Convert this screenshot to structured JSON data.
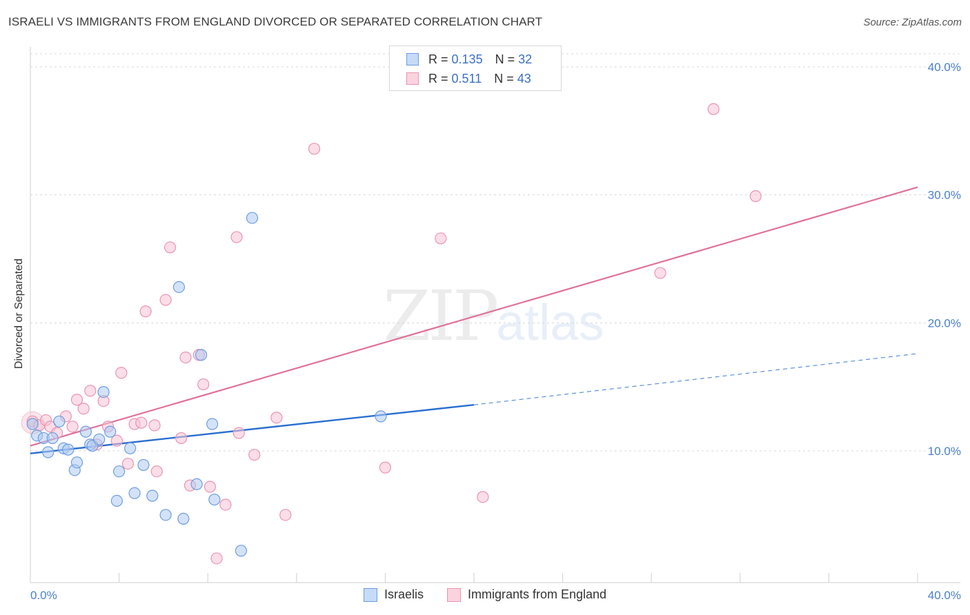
{
  "header": {
    "title": "ISRAELI VS IMMIGRANTS FROM ENGLAND DIVORCED OR SEPARATED CORRELATION CHART",
    "source": "Source: ZipAtlas.com"
  },
  "watermark": {
    "zip": "ZIP",
    "atlas": "atlas"
  },
  "legend": {
    "rows": [
      {
        "r_label": "R =",
        "r_value": "0.135",
        "n_label": "N =",
        "n_value": "32",
        "color": "#aecbf2",
        "border": "#6d9de0"
      },
      {
        "r_label": "R =",
        "r_value": "0.511",
        "n_label": "N =",
        "n_value": "43",
        "color": "#f7c3d3",
        "border": "#e994b0"
      }
    ],
    "bottom": [
      {
        "label": "Israelis",
        "color": "#c5dbf7",
        "border": "#6d9de0"
      },
      {
        "label": "Immigrants from England",
        "color": "#fbd3df",
        "border": "#e994b0"
      }
    ]
  },
  "chart_data": {
    "type": "scatter",
    "title": "ISRAELI VS IMMIGRANTS FROM ENGLAND DIVORCED OR SEPARATED CORRELATION CHART",
    "xlabel": "",
    "ylabel": "Divorced or Separated",
    "xlim": [
      0,
      40
    ],
    "ylim": [
      0,
      40
    ],
    "x_tick_labels": [
      "0.0%",
      "40.0%"
    ],
    "y_ticks": [
      10,
      20,
      30,
      40
    ],
    "y_tick_labels": [
      "10.0%",
      "20.0%",
      "30.0%",
      "40.0%"
    ],
    "grid": true,
    "series": [
      {
        "name": "Israelis",
        "color": "#6d9de0",
        "fill": "#aecbf2",
        "r": 0.135,
        "n": 32,
        "points": [
          [
            0.1,
            12.1
          ],
          [
            0.3,
            11.2
          ],
          [
            0.6,
            11.0
          ],
          [
            0.8,
            9.9
          ],
          [
            1.0,
            11.0
          ],
          [
            1.3,
            12.3
          ],
          [
            1.5,
            10.2
          ],
          [
            1.7,
            10.1
          ],
          [
            2.0,
            8.5
          ],
          [
            2.1,
            9.1
          ],
          [
            2.5,
            11.5
          ],
          [
            2.7,
            10.5
          ],
          [
            2.8,
            10.4
          ],
          [
            3.1,
            10.9
          ],
          [
            3.3,
            14.6
          ],
          [
            3.6,
            11.5
          ],
          [
            3.9,
            6.1
          ],
          [
            4.0,
            8.4
          ],
          [
            4.5,
            10.2
          ],
          [
            4.7,
            6.7
          ],
          [
            5.1,
            8.9
          ],
          [
            5.5,
            6.5
          ],
          [
            6.1,
            5.0
          ],
          [
            6.7,
            22.8
          ],
          [
            6.9,
            4.7
          ],
          [
            7.5,
            7.4
          ],
          [
            7.7,
            17.5
          ],
          [
            8.2,
            12.1
          ],
          [
            8.3,
            6.2
          ],
          [
            9.5,
            2.2
          ],
          [
            10.0,
            28.2
          ],
          [
            15.8,
            12.7
          ]
        ],
        "trend": {
          "x0": 0,
          "y0": 9.8,
          "x1": 20,
          "y1": 13.6,
          "dashed_to_x": 40,
          "dashed_to_y": 17.6
        }
      },
      {
        "name": "Immigrants from England",
        "color": "#e994b0",
        "fill": "#f7c3d3",
        "r": 0.511,
        "n": 43,
        "points": [
          [
            0.1,
            12.3
          ],
          [
            0.4,
            12.0
          ],
          [
            0.7,
            12.4
          ],
          [
            0.9,
            11.9
          ],
          [
            1.2,
            11.4
          ],
          [
            1.6,
            12.7
          ],
          [
            1.9,
            11.9
          ],
          [
            2.1,
            14.0
          ],
          [
            2.4,
            13.3
          ],
          [
            2.7,
            14.7
          ],
          [
            3.0,
            10.5
          ],
          [
            3.3,
            13.9
          ],
          [
            3.5,
            11.9
          ],
          [
            3.9,
            10.8
          ],
          [
            4.1,
            16.1
          ],
          [
            4.4,
            9.0
          ],
          [
            4.7,
            12.1
          ],
          [
            5.0,
            12.2
          ],
          [
            5.2,
            20.9
          ],
          [
            5.6,
            12.0
          ],
          [
            5.7,
            8.4
          ],
          [
            6.1,
            21.8
          ],
          [
            6.3,
            25.9
          ],
          [
            6.8,
            11.0
          ],
          [
            7.0,
            17.3
          ],
          [
            7.2,
            7.3
          ],
          [
            7.6,
            17.5
          ],
          [
            7.8,
            15.2
          ],
          [
            8.1,
            7.2
          ],
          [
            8.4,
            1.6
          ],
          [
            8.8,
            5.8
          ],
          [
            9.3,
            26.7
          ],
          [
            9.4,
            11.4
          ],
          [
            10.1,
            9.7
          ],
          [
            11.1,
            12.6
          ],
          [
            11.5,
            5.0
          ],
          [
            12.8,
            33.6
          ],
          [
            16.0,
            8.7
          ],
          [
            18.5,
            26.6
          ],
          [
            20.4,
            6.4
          ],
          [
            28.4,
            23.9
          ],
          [
            30.8,
            36.7
          ],
          [
            32.7,
            29.9
          ]
        ],
        "trend": {
          "x0": 0,
          "y0": 10.4,
          "x1": 40,
          "y1": 30.6
        }
      }
    ]
  }
}
